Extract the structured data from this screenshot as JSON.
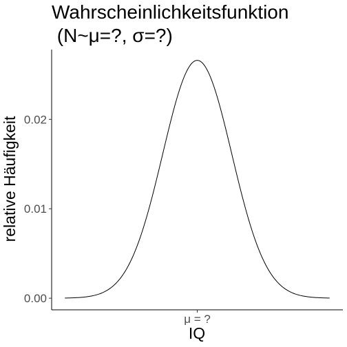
{
  "chart_data": {
    "type": "line",
    "title": "Wahrscheinlichkeitsfunktion",
    "subtitle": " (N~μ=?, σ=?)",
    "xlabel": "IQ",
    "ylabel": "relative Häufigkeit",
    "x_ticks": [
      {
        "value": 100,
        "label": "μ = ?"
      }
    ],
    "y_ticks": [
      {
        "value": 0.0,
        "label": "0.00"
      },
      {
        "value": 0.01,
        "label": "0.01"
      },
      {
        "value": 0.02,
        "label": "0.02"
      }
    ],
    "xlim": [
      36.75,
      163.25
    ],
    "ylim": [
      -0.0013,
      0.0278
    ],
    "grid": false,
    "series": [
      {
        "distribution": "normal",
        "mean": 100,
        "sd": 15,
        "x_from": 42.5,
        "x_to": 157.5,
        "color": "#000000"
      }
    ]
  }
}
